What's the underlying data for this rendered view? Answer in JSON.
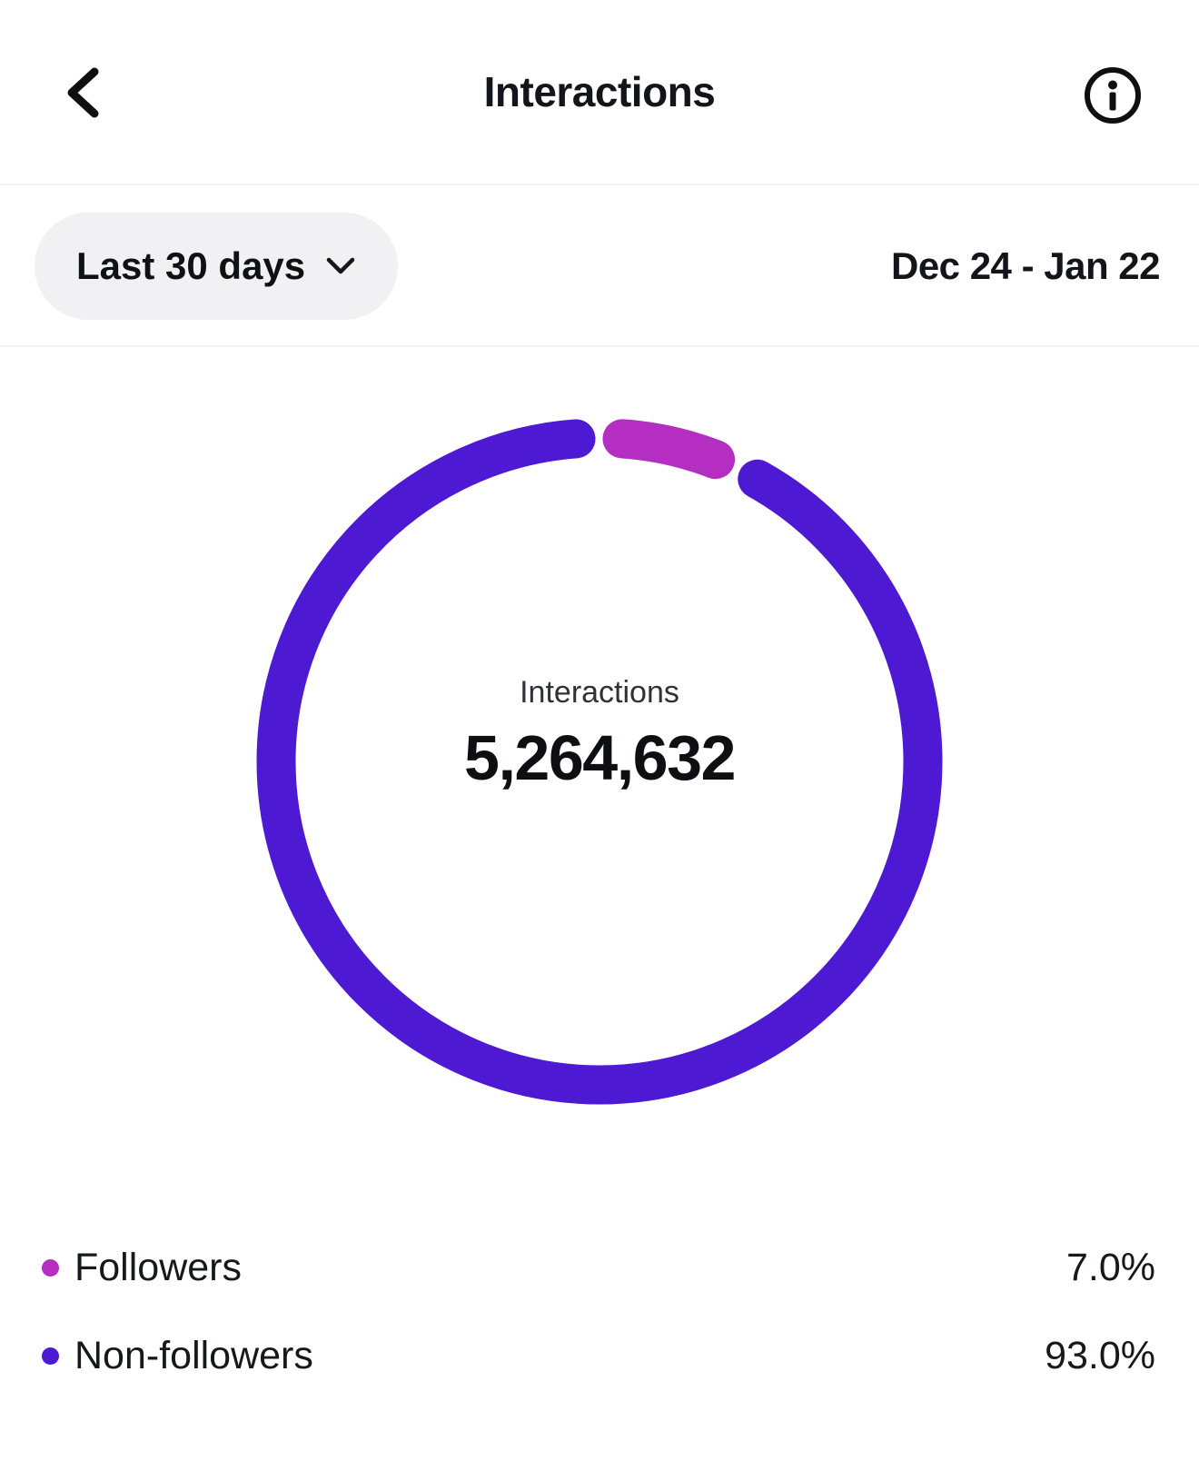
{
  "header": {
    "title": "Interactions"
  },
  "icons": {
    "back": "chevron-left",
    "info": "info-circle",
    "filter_dropdown": "chevron-down"
  },
  "filter": {
    "range_label": "Last 30 days",
    "date_range": "Dec 24 - Jan 22"
  },
  "donut": {
    "center_label": "Interactions",
    "center_value": "5,264,632"
  },
  "chart_data": {
    "type": "pie",
    "variant": "donut",
    "title": "Interactions",
    "period": "Last 30 days",
    "date_range": "Dec 24 - Jan 22",
    "total_label": "Interactions",
    "total_value": "5,264,632",
    "series": [
      {
        "name": "Followers",
        "value": 7.0,
        "display": "7.0%",
        "color": "#B42FC1"
      },
      {
        "name": "Non-followers",
        "value": 93.0,
        "display": "93.0%",
        "color": "#4D19D2"
      }
    ],
    "legend_position": "bottom"
  },
  "legend": {
    "items": [
      {
        "label": "Followers",
        "value": "7.0%",
        "color": "#B42FC1"
      },
      {
        "label": "Non-followers",
        "value": "93.0%",
        "color": "#4D19D2"
      }
    ]
  },
  "colors": {
    "followers": "#B42FC1",
    "non_followers": "#4D19D2",
    "divider": "#F0F0F2",
    "pill_bg": "#F1F1F3"
  }
}
